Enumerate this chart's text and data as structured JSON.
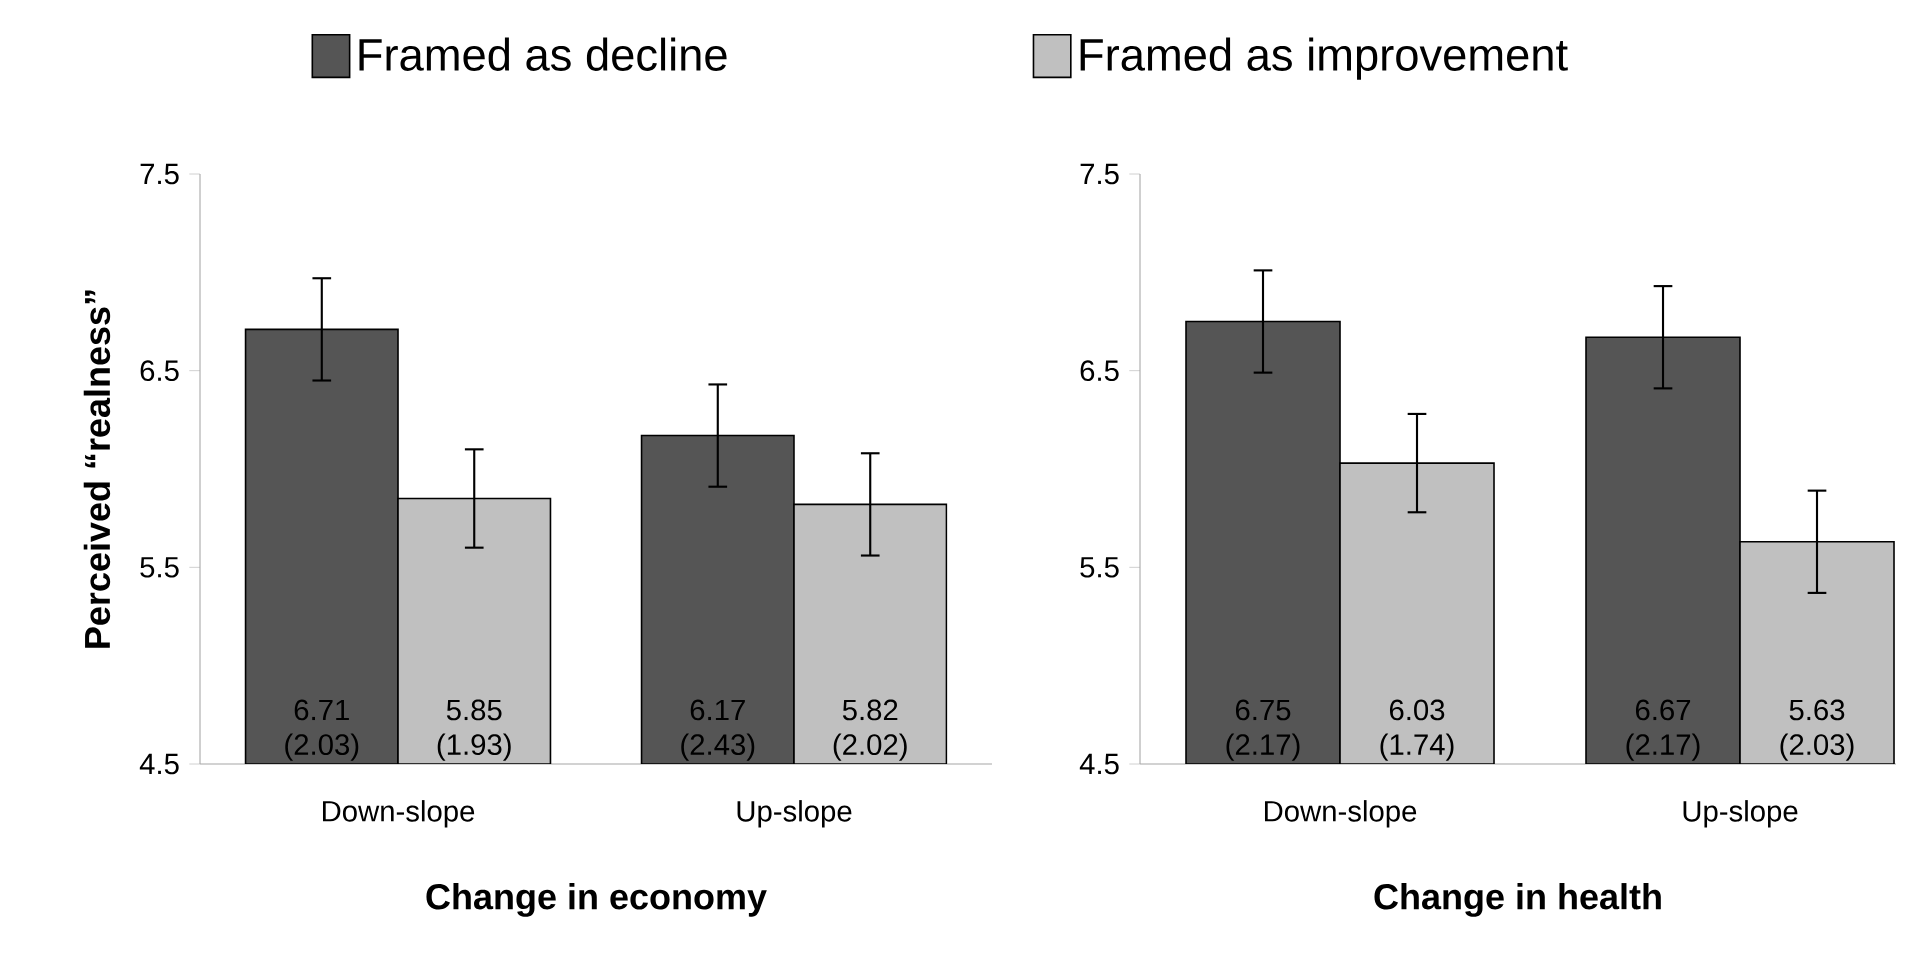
{
  "chart_data": [
    {
      "type": "bar",
      "categories": [
        "Down-slope",
        "Up-slope"
      ],
      "xlabel": "Change in economy",
      "ylabel": "Perceived “realness”",
      "ylim": [
        4.5,
        7.5
      ],
      "yticks": [
        4.5,
        5.5,
        6.5,
        7.5
      ],
      "legend": "top",
      "series": [
        {
          "name": "Framed as decline",
          "color": "#555555",
          "values": [
            6.71,
            6.17
          ],
          "errors": [
            0.26,
            0.26
          ],
          "value_labels": [
            "6.71 (2.03)",
            "6.17 (2.43)"
          ]
        },
        {
          "name": "Framed as improvement",
          "color": "#c0c0c0",
          "values": [
            5.85,
            5.82
          ],
          "errors": [
            0.25,
            0.26
          ],
          "value_labels": [
            "5.85 (1.93)",
            "5.82 (2.02)"
          ]
        }
      ]
    },
    {
      "type": "bar",
      "categories": [
        "Down-slope",
        "Up-slope"
      ],
      "xlabel": "Change in health",
      "ylim": [
        4.5,
        7.5
      ],
      "yticks": [
        4.5,
        5.5,
        6.5,
        7.5
      ],
      "series": [
        {
          "color": "#555555",
          "values": [
            6.75,
            6.67
          ],
          "errors": [
            0.26,
            0.26
          ],
          "value_labels": [
            "6.75 (2.17)",
            "6.67 (2.17)"
          ]
        },
        {
          "color": "#c0c0c0",
          "values": [
            6.03,
            5.63
          ],
          "errors": [
            0.25,
            0.26
          ],
          "value_labels": [
            "6.03 (1.74)",
            "5.63 (2.03)"
          ]
        }
      ]
    }
  ]
}
